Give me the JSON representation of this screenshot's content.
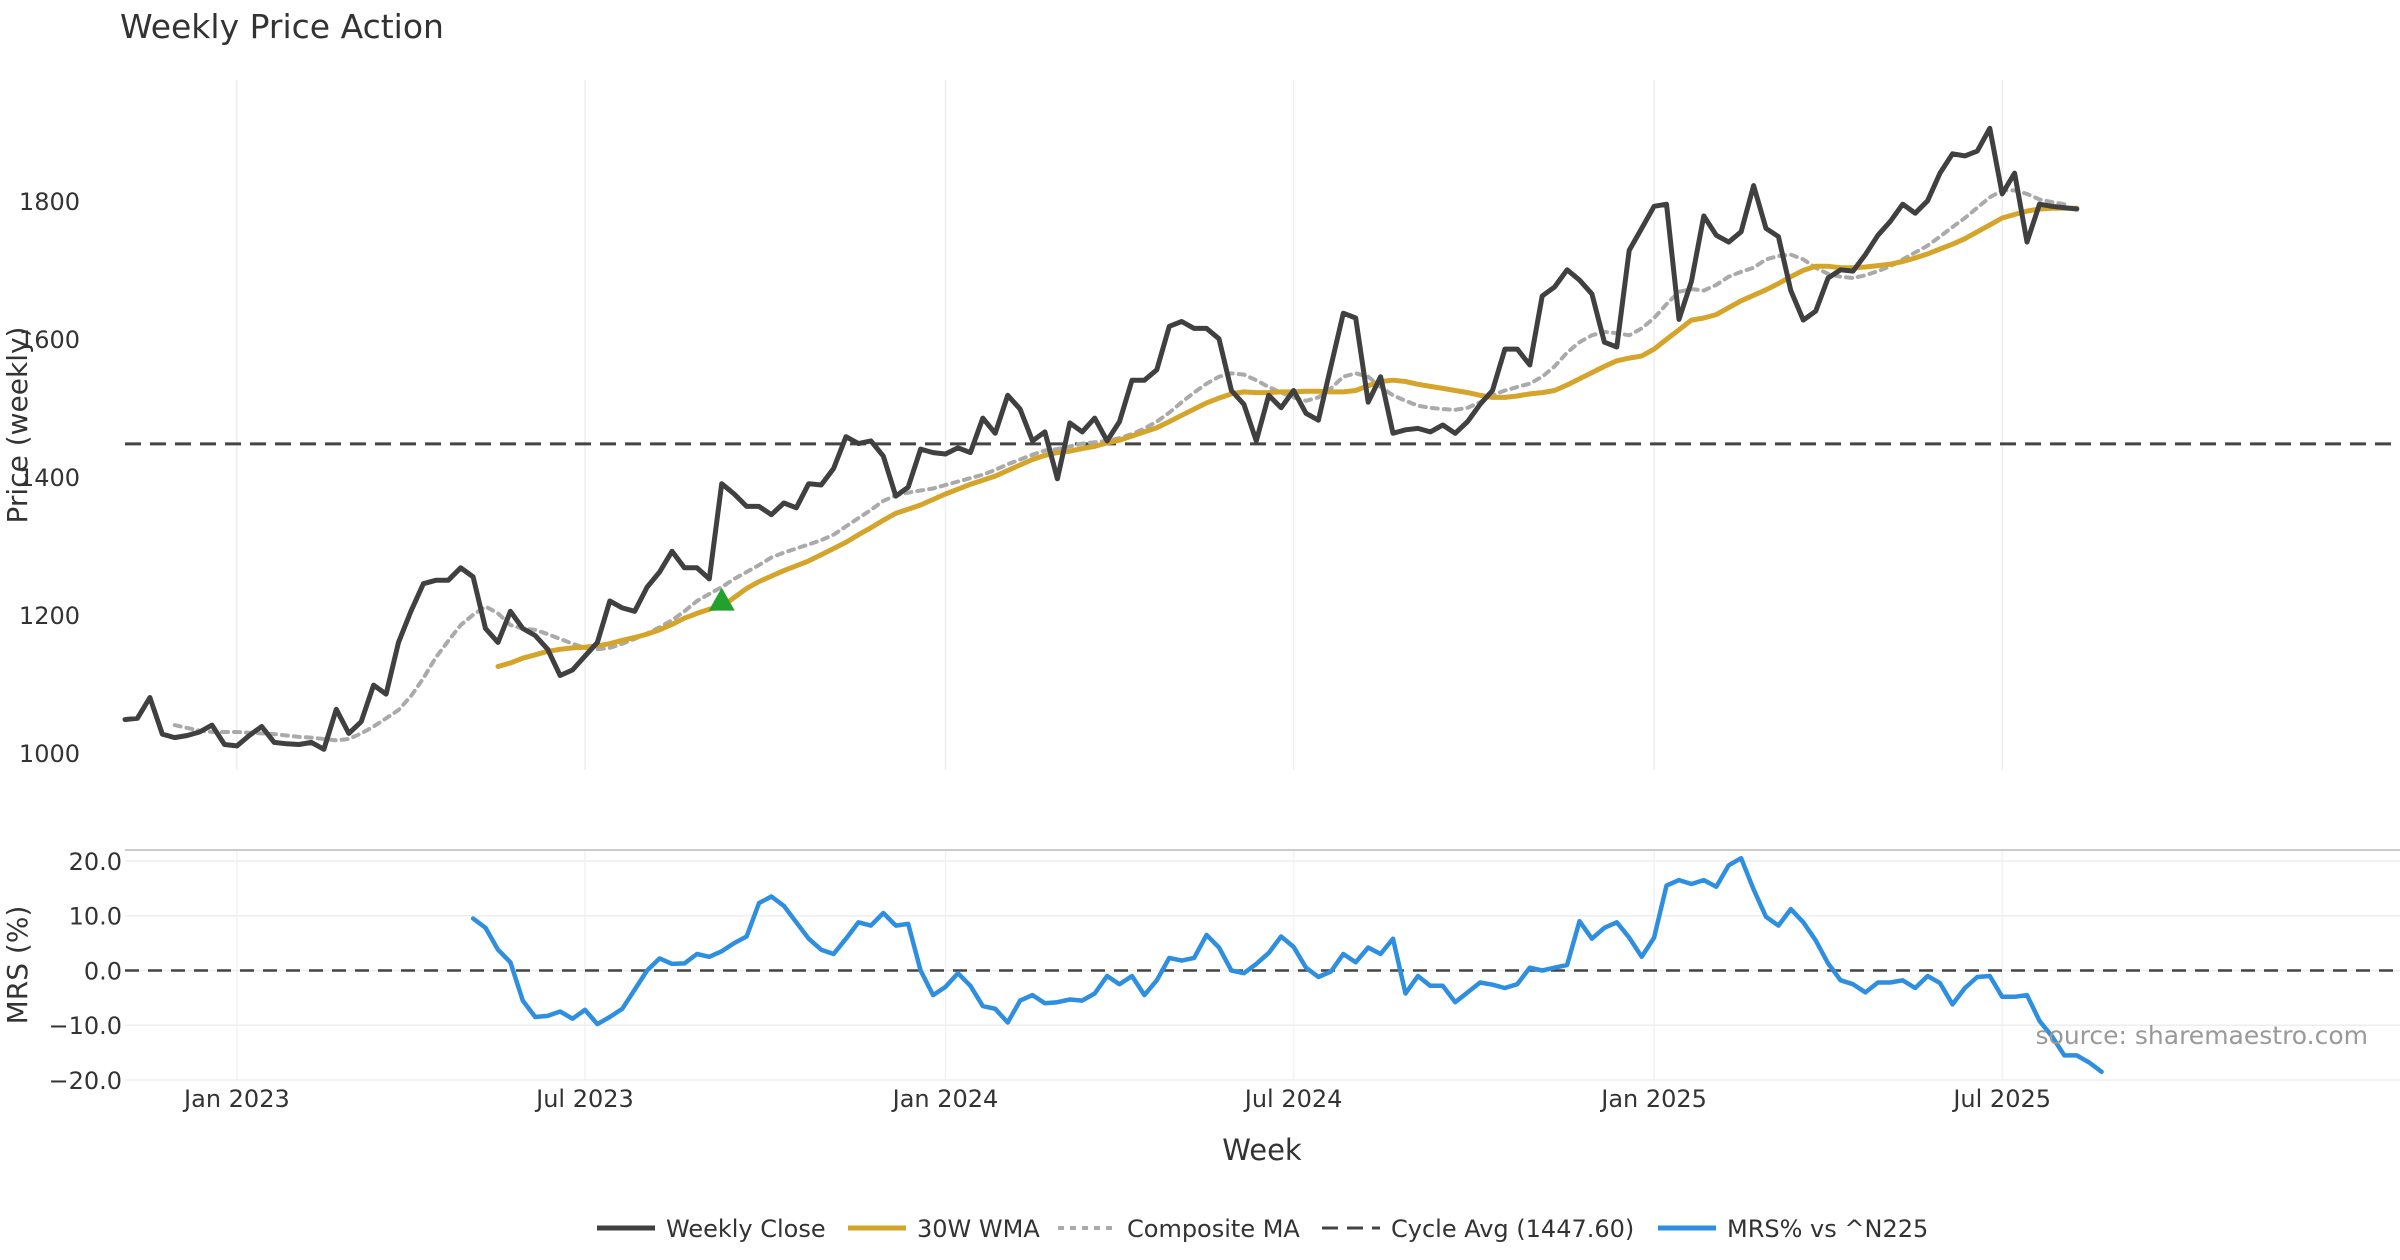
{
  "chart_data": {
    "type": "line",
    "title": "Weekly Price Action",
    "source": "source: sharemaestro.com",
    "xlabel": "Week",
    "x_range": [
      0,
      183
    ],
    "x_ticks": [
      {
        "label": "Jan 2023",
        "week": 9
      },
      {
        "label": "Jul 2023",
        "week": 37
      },
      {
        "label": "Jan 2024",
        "week": 66
      },
      {
        "label": "Jul 2024",
        "week": 94
      },
      {
        "label": "Jan 2025",
        "week": 123
      },
      {
        "label": "Jul 2025",
        "week": 151
      }
    ],
    "price_panel": {
      "ylabel": "Price (weekly)",
      "ylim": [
        975,
        1975
      ],
      "yticks": [
        1000,
        1200,
        1400,
        1600,
        1800
      ],
      "cycle_avg": 1447.6,
      "signal": {
        "type": "triangle-up",
        "week": 48,
        "value": 1222,
        "color": "#22a12e"
      },
      "series": [
        {
          "name": "Weekly Close",
          "color": "#404040",
          "style": "solid",
          "start_week": 0,
          "values": [
            1048,
            1050,
            1080,
            1027,
            1022,
            1025,
            1030,
            1040,
            1012,
            1010,
            1025,
            1038,
            1015,
            1013,
            1012,
            1015,
            1005,
            1063,
            1028,
            1045,
            1098,
            1085,
            1160,
            1205,
            1245,
            1250,
            1250,
            1268,
            1255,
            1180,
            1160,
            1205,
            1180,
            1170,
            1150,
            1112,
            1120,
            1140,
            1160,
            1220,
            1210,
            1205,
            1240,
            1262,
            1292,
            1268,
            1268,
            1252,
            1390,
            1375,
            1357,
            1357,
            1345,
            1362,
            1355,
            1390,
            1388,
            1412,
            1458,
            1448,
            1452,
            1430,
            1372,
            1385,
            1440,
            1435,
            1433,
            1442,
            1435,
            1485,
            1463,
            1518,
            1498,
            1452,
            1465,
            1397,
            1478,
            1465,
            1485,
            1452,
            1480,
            1540,
            1540,
            1555,
            1618,
            1625,
            1615,
            1615,
            1600,
            1525,
            1505,
            1452,
            1518,
            1500,
            1525,
            1492,
            1482,
            1560,
            1637,
            1630,
            1508,
            1545,
            1463,
            1468,
            1470,
            1465,
            1475,
            1463,
            1480,
            1505,
            1525,
            1585,
            1585,
            1562,
            1662,
            1675,
            1700,
            1685,
            1665,
            1595,
            1588,
            1728,
            1760,
            1792,
            1795,
            1628,
            1683,
            1778,
            1750,
            1740,
            1755,
            1822,
            1760,
            1748,
            1670,
            1627,
            1640,
            1688,
            1700,
            1698,
            1722,
            1750,
            1770,
            1795,
            1782,
            1800,
            1840,
            1868,
            1865,
            1872,
            1905,
            1810,
            1840,
            1740,
            1795,
            1792,
            1790,
            1788
          ]
        },
        {
          "name": "30W WMA",
          "color": "#d4a52a",
          "style": "solid",
          "start_week": 30,
          "values": [
            1125,
            1130,
            1137,
            1142,
            1147,
            1150,
            1152,
            1153,
            1155,
            1158,
            1163,
            1167,
            1172,
            1178,
            1186,
            1195,
            1202,
            1208,
            1212,
            1225,
            1238,
            1248,
            1256,
            1264,
            1271,
            1278,
            1287,
            1296,
            1305,
            1316,
            1326,
            1337,
            1347,
            1353,
            1359,
            1367,
            1375,
            1382,
            1389,
            1395,
            1401,
            1409,
            1417,
            1425,
            1431,
            1435,
            1437,
            1441,
            1444,
            1449,
            1453,
            1459,
            1465,
            1471,
            1480,
            1489,
            1498,
            1507,
            1514,
            1520,
            1523,
            1522,
            1522,
            1523,
            1523,
            1524,
            1524,
            1523,
            1523,
            1525,
            1532,
            1538,
            1540,
            1538,
            1534,
            1531,
            1528,
            1525,
            1522,
            1518,
            1515,
            1515,
            1517,
            1520,
            1522,
            1525,
            1533,
            1542,
            1551,
            1560,
            1568,
            1572,
            1575,
            1585,
            1599,
            1613,
            1627,
            1630,
            1635,
            1645,
            1655,
            1663,
            1671,
            1680,
            1690,
            1699,
            1705,
            1705,
            1703,
            1703,
            1704,
            1706,
            1708,
            1712,
            1717,
            1723,
            1730,
            1737,
            1745,
            1755,
            1765,
            1775,
            1780,
            1785,
            1788,
            1789,
            1789,
            1789
          ]
        },
        {
          "name": "Composite MA",
          "color": "#aaaaaa",
          "style": "dotted",
          "start_week": 4,
          "values": [
            1040,
            1036,
            1032,
            1030,
            1030,
            1030,
            1029,
            1028,
            1027,
            1025,
            1023,
            1022,
            1020,
            1018,
            1020,
            1028,
            1038,
            1050,
            1062,
            1082,
            1108,
            1138,
            1162,
            1185,
            1200,
            1212,
            1202,
            1185,
            1180,
            1178,
            1172,
            1165,
            1158,
            1152,
            1150,
            1152,
            1158,
            1165,
            1173,
            1182,
            1192,
            1205,
            1220,
            1230,
            1240,
            1252,
            1262,
            1272,
            1283,
            1290,
            1296,
            1302,
            1308,
            1316,
            1328,
            1340,
            1352,
            1365,
            1373,
            1377,
            1380,
            1383,
            1388,
            1393,
            1398,
            1403,
            1410,
            1418,
            1425,
            1432,
            1438,
            1440,
            1444,
            1448,
            1450,
            1452,
            1456,
            1462,
            1470,
            1480,
            1493,
            1508,
            1522,
            1535,
            1545,
            1550,
            1548,
            1540,
            1530,
            1522,
            1515,
            1510,
            1515,
            1528,
            1545,
            1550,
            1545,
            1530,
            1518,
            1510,
            1503,
            1500,
            1498,
            1497,
            1500,
            1508,
            1518,
            1525,
            1530,
            1535,
            1545,
            1560,
            1580,
            1595,
            1605,
            1610,
            1608,
            1605,
            1615,
            1630,
            1650,
            1668,
            1672,
            1670,
            1678,
            1690,
            1697,
            1703,
            1715,
            1720,
            1722,
            1715,
            1703,
            1694,
            1690,
            1688,
            1692,
            1698,
            1705,
            1715,
            1725,
            1735,
            1748,
            1762,
            1775,
            1790,
            1805,
            1815,
            1815,
            1810,
            1802,
            1798,
            1795
          ]
        }
      ]
    },
    "mrs_panel": {
      "ylabel": "MRS (%)",
      "ylim": [
        -20,
        22
      ],
      "yticks": [
        20.0,
        10.0,
        0.0,
        -10.0,
        -20.0
      ],
      "ytick_labels": [
        "20.0",
        "10.0",
        "0.0",
        "−10.0",
        "−20.0"
      ],
      "series": [
        {
          "name": "MRS% vs ^N225",
          "color": "#2e8fe0",
          "style": "solid",
          "start_week": 28,
          "values": [
            9.5,
            7.8,
            3.8,
            1.5,
            -5.5,
            -8.5,
            -8.3,
            -7.5,
            -8.8,
            -7.2,
            -9.8,
            -8.5,
            -7.0,
            -3.5,
            0.0,
            2.2,
            1.2,
            1.3,
            3.0,
            2.5,
            3.5,
            5.0,
            6.2,
            12.3,
            13.5,
            11.8,
            8.8,
            5.8,
            3.8,
            3.0,
            5.8,
            8.8,
            8.2,
            10.5,
            8.2,
            8.5,
            0.0,
            -4.5,
            -3.0,
            -0.5,
            -2.8,
            -6.5,
            -7.0,
            -9.5,
            -5.5,
            -4.5,
            -6.0,
            -5.8,
            -5.3,
            -5.5,
            -4.2,
            -1.0,
            -2.5,
            -1.0,
            -4.5,
            -1.8,
            2.3,
            1.8,
            2.3,
            6.5,
            4.2,
            0.0,
            -0.5,
            1.2,
            3.2,
            6.2,
            4.3,
            0.5,
            -1.2,
            -0.2,
            3.0,
            1.5,
            4.2,
            3.0,
            5.8,
            -4.2,
            -1.0,
            -2.8,
            -2.8,
            -5.8,
            -4.0,
            -2.2,
            -2.6,
            -3.2,
            -2.5,
            0.5,
            0.0,
            0.5,
            1.0,
            9.0,
            5.8,
            7.8,
            8.8,
            6.0,
            2.5,
            6.0,
            15.5,
            16.5,
            15.8,
            16.5,
            15.3,
            19.2,
            20.5,
            14.8,
            9.8,
            8.2,
            11.2,
            8.8,
            5.5,
            1.3,
            -1.8,
            -2.5,
            -4.0,
            -2.2,
            -2.2,
            -1.8,
            -3.2,
            -1.0,
            -2.3,
            -6.2,
            -3.2,
            -1.2,
            -1.0,
            -4.8,
            -4.8,
            -4.5,
            -9.2,
            -12.0,
            -15.5,
            -15.5,
            -16.8,
            -18.5
          ]
        }
      ]
    },
    "legend": [
      {
        "label": "Weekly Close",
        "color": "#404040",
        "style": "solid"
      },
      {
        "label": "30W WMA",
        "color": "#d4a52a",
        "style": "solid"
      },
      {
        "label": "Composite MA",
        "color": "#aaaaaa",
        "style": "dotted"
      },
      {
        "label": "Cycle Avg (1447.60)",
        "color": "#444444",
        "style": "dashed"
      },
      {
        "label": "MRS% vs ^N225",
        "color": "#2e8fe0",
        "style": "solid"
      }
    ]
  }
}
